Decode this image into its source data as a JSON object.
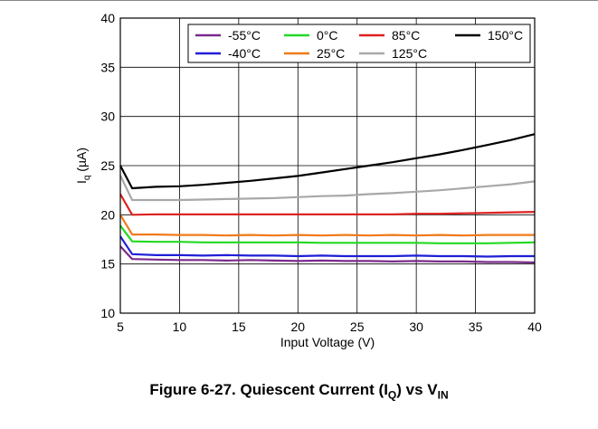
{
  "caption": {
    "text": "Figure 6-27. Quiescent Current (I",
    "sub1": "Q",
    "mid": ") vs V",
    "sub2": "IN"
  },
  "chart_data": {
    "type": "line",
    "xlabel": "Input Voltage (V)",
    "ylabel": "Iq (µA)",
    "ylabel_main": "I",
    "ylabel_sub": "q",
    "ylabel_rest": " (µA)",
    "xlim": [
      5,
      40
    ],
    "ylim": [
      10,
      40
    ],
    "xticks": [
      5,
      10,
      15,
      20,
      25,
      30,
      35,
      40
    ],
    "yticks": [
      10,
      15,
      20,
      25,
      30,
      35,
      40
    ],
    "grid": true,
    "legend_position": "top-right",
    "x": [
      5,
      6,
      8,
      10,
      12,
      14,
      16,
      18,
      20,
      22,
      24,
      26,
      28,
      30,
      32,
      34,
      36,
      38,
      40
    ],
    "series": [
      {
        "name": "-55°C",
        "color": "#7b2a8c",
        "values": [
          16.8,
          15.5,
          15.45,
          15.4,
          15.4,
          15.35,
          15.4,
          15.35,
          15.3,
          15.35,
          15.3,
          15.3,
          15.25,
          15.3,
          15.25,
          15.25,
          15.2,
          15.2,
          15.15
        ]
      },
      {
        "name": "-40°C",
        "color": "#1f1fd6",
        "values": [
          17.8,
          16.0,
          15.9,
          15.9,
          15.85,
          15.9,
          15.85,
          15.85,
          15.8,
          15.85,
          15.8,
          15.8,
          15.8,
          15.85,
          15.8,
          15.8,
          15.75,
          15.8,
          15.8
        ]
      },
      {
        "name": "0°C",
        "color": "#22d922",
        "values": [
          18.9,
          17.3,
          17.25,
          17.25,
          17.2,
          17.2,
          17.2,
          17.2,
          17.2,
          17.15,
          17.15,
          17.15,
          17.15,
          17.15,
          17.1,
          17.1,
          17.1,
          17.15,
          17.2
        ]
      },
      {
        "name": "25°C",
        "color": "#f07a1a",
        "values": [
          20.0,
          18.0,
          18.0,
          17.95,
          17.95,
          17.9,
          17.95,
          17.9,
          17.95,
          17.9,
          17.95,
          17.9,
          17.95,
          17.9,
          17.95,
          17.9,
          17.95,
          17.95,
          17.95
        ]
      },
      {
        "name": "85°C",
        "color": "#e02020",
        "values": [
          22.1,
          20.0,
          20.05,
          20.05,
          20.05,
          20.05,
          20.05,
          20.05,
          20.05,
          20.05,
          20.05,
          20.05,
          20.05,
          20.1,
          20.1,
          20.15,
          20.2,
          20.25,
          20.3
        ]
      },
      {
        "name": "125°C",
        "color": "#a8a8a8",
        "values": [
          24.0,
          21.5,
          21.5,
          21.5,
          21.55,
          21.6,
          21.65,
          21.7,
          21.8,
          21.9,
          21.95,
          22.1,
          22.2,
          22.35,
          22.5,
          22.7,
          22.9,
          23.1,
          23.4
        ]
      },
      {
        "name": "150°C",
        "color": "#000000",
        "values": [
          25.0,
          22.7,
          22.85,
          22.9,
          23.05,
          23.25,
          23.45,
          23.7,
          23.95,
          24.3,
          24.65,
          25.0,
          25.35,
          25.75,
          26.15,
          26.6,
          27.1,
          27.6,
          28.2
        ]
      }
    ],
    "legend_layout": [
      [
        "-55°C",
        "0°C",
        "85°C",
        "150°C"
      ],
      [
        "-40°C",
        "25°C",
        "125°C"
      ]
    ]
  }
}
